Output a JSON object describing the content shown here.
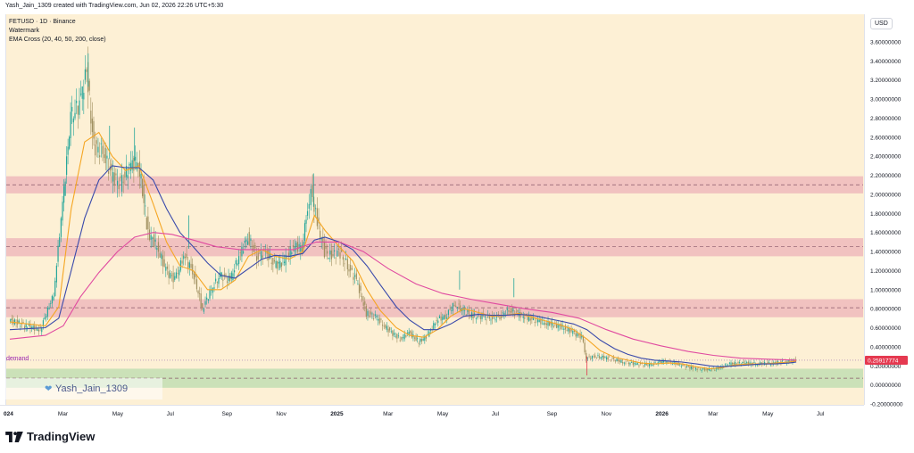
{
  "header": {
    "text": "Yash_Jain_1309 created with TradingView.com, Jun 02, 2026 22:26 UTC+5:30"
  },
  "legend": {
    "symbol_line": "FETUSD · 1D · Binance",
    "watermark_line": "Watermark",
    "ema_line": "EMA Cross (20, 40, 50, 200, close)"
  },
  "price_axis": {
    "currency": "USD",
    "current_price_label": "0.25917774"
  },
  "watermark": {
    "author": "Yash_Jain_1309"
  },
  "demand_label": "demand",
  "footer": {
    "brand": "TradingView"
  },
  "colors": {
    "background": "#fdf0d5",
    "zone_red": "#e9a3b3",
    "zone_green": "#b9dcae",
    "ema20": "#f5a623",
    "ema40": "#3949ab",
    "ema200": "#e04aa0",
    "candle_up": "#26a69a",
    "candle_down": "#a09060",
    "price_tag": "#e53950"
  },
  "chart_data": {
    "type": "candlestick",
    "title": "FETUSD · 1D · Binance",
    "y_axis": {
      "ticks": [
        "3.60000000",
        "3.40000000",
        "3.20000000",
        "3.00000000",
        "2.80000000",
        "2.60000000",
        "2.40000000",
        "2.20000000",
        "2.00000000",
        "1.80000000",
        "1.60000000",
        "1.40000000",
        "1.20000000",
        "1.00000000",
        "0.80000000",
        "0.60000000",
        "0.40000000",
        "0.20000000",
        "0.00000000",
        "-0.20000000"
      ],
      "ylim": [
        -0.2,
        3.6
      ]
    },
    "x_axis": {
      "ticks": [
        {
          "label": "024",
          "date": "2024-01-01"
        },
        {
          "label": "Mar",
          "date": "2024-03-01"
        },
        {
          "label": "May",
          "date": "2024-05-01"
        },
        {
          "label": "Jul",
          "date": "2024-07-01"
        },
        {
          "label": "Sep",
          "date": "2024-09-01"
        },
        {
          "label": "Nov",
          "date": "2024-11-01"
        },
        {
          "label": "2025",
          "date": "2025-01-01"
        },
        {
          "label": "Mar",
          "date": "2025-03-01"
        },
        {
          "label": "May",
          "date": "2025-05-01"
        },
        {
          "label": "Jul",
          "date": "2025-07-01"
        },
        {
          "label": "Sep",
          "date": "2025-09-01"
        },
        {
          "label": "Nov",
          "date": "2025-11-01"
        },
        {
          "label": "2026",
          "date": "2026-01-01"
        },
        {
          "label": "Mar",
          "date": "2026-03-01"
        },
        {
          "label": "May",
          "date": "2026-05-01"
        },
        {
          "label": "Jul",
          "date": "2026-07-01"
        }
      ]
    },
    "zones": [
      {
        "kind": "resistance",
        "low": 2.01,
        "high": 2.19,
        "mid": 2.1
      },
      {
        "kind": "resistance",
        "low": 1.35,
        "high": 1.54,
        "mid": 1.45
      },
      {
        "kind": "resistance",
        "low": 0.71,
        "high": 0.9,
        "mid": 0.81
      },
      {
        "kind": "demand",
        "low": -0.03,
        "high": 0.17,
        "mid": 0.07
      }
    ],
    "current_price": 0.25917774,
    "series": [
      {
        "name": "close",
        "points": [
          [
            "2024-01-01",
            0.68
          ],
          [
            "2024-01-20",
            0.62
          ],
          [
            "2024-02-05",
            0.58
          ],
          [
            "2024-02-20",
            0.95
          ],
          [
            "2024-03-01",
            1.9
          ],
          [
            "2024-03-10",
            2.8
          ],
          [
            "2024-03-20",
            2.95
          ],
          [
            "2024-03-28",
            3.3
          ],
          [
            "2024-04-05",
            2.5
          ],
          [
            "2024-04-15",
            2.45
          ],
          [
            "2024-04-25",
            2.2
          ],
          [
            "2024-05-05",
            2.1
          ],
          [
            "2024-05-15",
            2.3
          ],
          [
            "2024-05-25",
            2.35
          ],
          [
            "2024-06-05",
            1.6
          ],
          [
            "2024-06-15",
            1.45
          ],
          [
            "2024-06-25",
            1.2
          ],
          [
            "2024-07-05",
            1.1
          ],
          [
            "2024-07-15",
            1.35
          ],
          [
            "2024-07-25",
            1.2
          ],
          [
            "2024-08-05",
            0.8
          ],
          [
            "2024-08-15",
            1.0
          ],
          [
            "2024-08-25",
            1.15
          ],
          [
            "2024-09-05",
            1.1
          ],
          [
            "2024-09-15",
            1.35
          ],
          [
            "2024-09-25",
            1.55
          ],
          [
            "2024-10-05",
            1.35
          ],
          [
            "2024-10-15",
            1.4
          ],
          [
            "2024-10-25",
            1.25
          ],
          [
            "2024-11-05",
            1.3
          ],
          [
            "2024-11-15",
            1.45
          ],
          [
            "2024-11-25",
            1.45
          ],
          [
            "2024-12-01",
            1.85
          ],
          [
            "2024-12-05",
            2.05
          ],
          [
            "2024-12-12",
            1.7
          ],
          [
            "2024-12-20",
            1.4
          ],
          [
            "2024-12-28",
            1.35
          ],
          [
            "2025-01-05",
            1.4
          ],
          [
            "2025-01-15",
            1.25
          ],
          [
            "2025-01-25",
            1.1
          ],
          [
            "2025-02-05",
            0.75
          ],
          [
            "2025-02-15",
            0.72
          ],
          [
            "2025-02-25",
            0.62
          ],
          [
            "2025-03-05",
            0.55
          ],
          [
            "2025-03-15",
            0.48
          ],
          [
            "2025-03-25",
            0.55
          ],
          [
            "2025-04-05",
            0.45
          ],
          [
            "2025-04-15",
            0.52
          ],
          [
            "2025-04-25",
            0.68
          ],
          [
            "2025-05-05",
            0.72
          ],
          [
            "2025-05-15",
            0.85
          ],
          [
            "2025-05-25",
            0.78
          ],
          [
            "2025-06-05",
            0.72
          ],
          [
            "2025-06-15",
            0.72
          ],
          [
            "2025-06-25",
            0.7
          ],
          [
            "2025-07-05",
            0.72
          ],
          [
            "2025-07-15",
            0.78
          ],
          [
            "2025-07-25",
            0.75
          ],
          [
            "2025-08-05",
            0.7
          ],
          [
            "2025-08-15",
            0.68
          ],
          [
            "2025-08-25",
            0.65
          ],
          [
            "2025-09-05",
            0.63
          ],
          [
            "2025-09-15",
            0.6
          ],
          [
            "2025-09-25",
            0.55
          ],
          [
            "2025-10-05",
            0.5
          ],
          [
            "2025-10-10",
            0.28
          ],
          [
            "2025-10-20",
            0.3
          ],
          [
            "2025-11-05",
            0.28
          ],
          [
            "2025-11-20",
            0.24
          ],
          [
            "2025-12-05",
            0.22
          ],
          [
            "2025-12-20",
            0.21
          ],
          [
            "2026-01-05",
            0.25
          ],
          [
            "2026-01-20",
            0.22
          ],
          [
            "2026-02-05",
            0.18
          ],
          [
            "2026-02-20",
            0.16
          ],
          [
            "2026-03-05",
            0.17
          ],
          [
            "2026-03-20",
            0.22
          ],
          [
            "2026-04-05",
            0.23
          ],
          [
            "2026-04-20",
            0.22
          ],
          [
            "2026-05-05",
            0.23
          ],
          [
            "2026-05-20",
            0.24
          ],
          [
            "2026-06-02",
            0.26
          ]
        ]
      },
      {
        "name": "EMA 20",
        "points": [
          [
            "2024-01-01",
            0.66
          ],
          [
            "2024-02-10",
            0.62
          ],
          [
            "2024-02-25",
            0.82
          ],
          [
            "2024-03-10",
            1.85
          ],
          [
            "2024-03-25",
            2.55
          ],
          [
            "2024-04-10",
            2.65
          ],
          [
            "2024-04-25",
            2.4
          ],
          [
            "2024-05-10",
            2.25
          ],
          [
            "2024-05-25",
            2.3
          ],
          [
            "2024-06-10",
            1.9
          ],
          [
            "2024-06-25",
            1.5
          ],
          [
            "2024-07-10",
            1.25
          ],
          [
            "2024-07-25",
            1.2
          ],
          [
            "2024-08-10",
            1.0
          ],
          [
            "2024-08-25",
            1.0
          ],
          [
            "2024-09-10",
            1.1
          ],
          [
            "2024-09-25",
            1.35
          ],
          [
            "2024-10-10",
            1.42
          ],
          [
            "2024-10-25",
            1.35
          ],
          [
            "2024-11-10",
            1.32
          ],
          [
            "2024-11-25",
            1.4
          ],
          [
            "2024-12-08",
            1.78
          ],
          [
            "2024-12-20",
            1.62
          ],
          [
            "2025-01-05",
            1.45
          ],
          [
            "2025-01-20",
            1.3
          ],
          [
            "2025-02-05",
            1.0
          ],
          [
            "2025-02-20",
            0.78
          ],
          [
            "2025-03-10",
            0.6
          ],
          [
            "2025-03-25",
            0.52
          ],
          [
            "2025-04-10",
            0.5
          ],
          [
            "2025-04-25",
            0.58
          ],
          [
            "2025-05-10",
            0.72
          ],
          [
            "2025-05-25",
            0.8
          ],
          [
            "2025-06-10",
            0.76
          ],
          [
            "2025-06-25",
            0.72
          ],
          [
            "2025-07-10",
            0.73
          ],
          [
            "2025-07-25",
            0.75
          ],
          [
            "2025-08-10",
            0.71
          ],
          [
            "2025-08-25",
            0.67
          ],
          [
            "2025-09-10",
            0.63
          ],
          [
            "2025-09-25",
            0.58
          ],
          [
            "2025-10-10",
            0.48
          ],
          [
            "2025-10-25",
            0.36
          ],
          [
            "2025-11-10",
            0.29
          ],
          [
            "2025-11-25",
            0.26
          ],
          [
            "2025-12-10",
            0.23
          ],
          [
            "2025-12-25",
            0.22
          ],
          [
            "2026-01-10",
            0.23
          ],
          [
            "2026-01-25",
            0.22
          ],
          [
            "2026-02-10",
            0.19
          ],
          [
            "2026-02-25",
            0.17
          ],
          [
            "2026-03-10",
            0.18
          ],
          [
            "2026-03-25",
            0.21
          ],
          [
            "2026-04-10",
            0.22
          ],
          [
            "2026-04-25",
            0.22
          ],
          [
            "2026-05-10",
            0.23
          ],
          [
            "2026-05-25",
            0.24
          ],
          [
            "2026-06-02",
            0.25
          ]
        ]
      },
      {
        "name": "EMA 50",
        "points": [
          [
            "2024-01-01",
            0.58
          ],
          [
            "2024-02-10",
            0.6
          ],
          [
            "2024-02-25",
            0.7
          ],
          [
            "2024-03-10",
            1.2
          ],
          [
            "2024-03-25",
            1.75
          ],
          [
            "2024-04-10",
            2.15
          ],
          [
            "2024-04-25",
            2.3
          ],
          [
            "2024-05-10",
            2.28
          ],
          [
            "2024-05-25",
            2.28
          ],
          [
            "2024-06-10",
            2.15
          ],
          [
            "2024-06-25",
            1.85
          ],
          [
            "2024-07-10",
            1.6
          ],
          [
            "2024-07-25",
            1.45
          ],
          [
            "2024-08-10",
            1.28
          ],
          [
            "2024-08-25",
            1.15
          ],
          [
            "2024-09-10",
            1.12
          ],
          [
            "2024-09-25",
            1.22
          ],
          [
            "2024-10-10",
            1.32
          ],
          [
            "2024-10-25",
            1.36
          ],
          [
            "2024-11-10",
            1.35
          ],
          [
            "2024-11-25",
            1.38
          ],
          [
            "2024-12-08",
            1.52
          ],
          [
            "2024-12-20",
            1.55
          ],
          [
            "2025-01-05",
            1.5
          ],
          [
            "2025-01-20",
            1.42
          ],
          [
            "2025-02-05",
            1.25
          ],
          [
            "2025-02-20",
            1.05
          ],
          [
            "2025-03-10",
            0.82
          ],
          [
            "2025-03-25",
            0.68
          ],
          [
            "2025-04-10",
            0.58
          ],
          [
            "2025-04-25",
            0.58
          ],
          [
            "2025-05-10",
            0.64
          ],
          [
            "2025-05-25",
            0.72
          ],
          [
            "2025-06-10",
            0.74
          ],
          [
            "2025-06-25",
            0.73
          ],
          [
            "2025-07-10",
            0.73
          ],
          [
            "2025-07-25",
            0.74
          ],
          [
            "2025-08-10",
            0.73
          ],
          [
            "2025-08-25",
            0.7
          ],
          [
            "2025-09-10",
            0.67
          ],
          [
            "2025-09-25",
            0.64
          ],
          [
            "2025-10-10",
            0.58
          ],
          [
            "2025-10-25",
            0.47
          ],
          [
            "2025-11-10",
            0.38
          ],
          [
            "2025-11-25",
            0.32
          ],
          [
            "2025-12-10",
            0.28
          ],
          [
            "2025-12-25",
            0.26
          ],
          [
            "2026-01-10",
            0.25
          ],
          [
            "2026-01-25",
            0.24
          ],
          [
            "2026-02-10",
            0.22
          ],
          [
            "2026-02-25",
            0.2
          ],
          [
            "2026-03-10",
            0.19
          ],
          [
            "2026-03-25",
            0.2
          ],
          [
            "2026-04-10",
            0.21
          ],
          [
            "2026-04-25",
            0.22
          ],
          [
            "2026-05-10",
            0.22
          ],
          [
            "2026-05-25",
            0.23
          ],
          [
            "2026-06-02",
            0.24
          ]
        ]
      },
      {
        "name": "EMA 200",
        "points": [
          [
            "2024-01-01",
            0.48
          ],
          [
            "2024-02-10",
            0.52
          ],
          [
            "2024-03-01",
            0.62
          ],
          [
            "2024-03-20",
            0.92
          ],
          [
            "2024-04-10",
            1.18
          ],
          [
            "2024-05-01",
            1.4
          ],
          [
            "2024-05-20",
            1.55
          ],
          [
            "2024-06-10",
            1.6
          ],
          [
            "2024-07-01",
            1.58
          ],
          [
            "2024-07-25",
            1.52
          ],
          [
            "2024-08-20",
            1.45
          ],
          [
            "2024-09-15",
            1.42
          ],
          [
            "2024-10-15",
            1.42
          ],
          [
            "2024-11-15",
            1.42
          ],
          [
            "2024-12-10",
            1.5
          ],
          [
            "2025-01-05",
            1.5
          ],
          [
            "2025-02-01",
            1.4
          ],
          [
            "2025-03-01",
            1.22
          ],
          [
            "2025-04-01",
            1.06
          ],
          [
            "2025-05-01",
            0.96
          ],
          [
            "2025-06-01",
            0.9
          ],
          [
            "2025-07-01",
            0.85
          ],
          [
            "2025-08-01",
            0.8
          ],
          [
            "2025-09-01",
            0.76
          ],
          [
            "2025-10-01",
            0.7
          ],
          [
            "2025-11-01",
            0.58
          ],
          [
            "2025-12-01",
            0.48
          ],
          [
            "2026-01-01",
            0.41
          ],
          [
            "2026-02-01",
            0.35
          ],
          [
            "2026-03-01",
            0.31
          ],
          [
            "2026-04-01",
            0.28
          ],
          [
            "2026-05-01",
            0.27
          ],
          [
            "2026-06-02",
            0.26
          ]
        ]
      }
    ],
    "price_spikes": [
      [
        "2024-03-29",
        3.48
      ],
      [
        "2024-04-22",
        2.72
      ],
      [
        "2024-05-20",
        2.7
      ],
      [
        "2024-07-20",
        1.78
      ],
      [
        "2024-12-07",
        2.22
      ],
      [
        "2025-05-20",
        1.0
      ],
      [
        "2025-07-20",
        0.92
      ],
      [
        "2025-10-10",
        0.1
      ]
    ]
  }
}
